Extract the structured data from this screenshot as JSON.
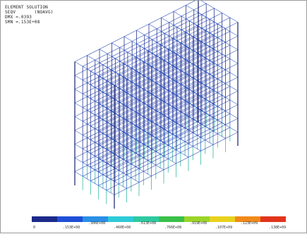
{
  "header": {
    "lines": [
      "ELEMENT SOLUTION",
      "SEQV       (NOAVG)",
      "DMX =.0393",
      "SMN =.153E+08"
    ]
  },
  "legend": {
    "colors": [
      "#1b2a8a",
      "#1f4fd6",
      "#2b8fe6",
      "#2ecad8",
      "#2ec9a0",
      "#3ac04a",
      "#9bd42a",
      "#e8d21e",
      "#f08a1a",
      "#e2341c"
    ],
    "labels": [
      "0",
      ".153E+08",
      ".306E+08",
      ".460E+08",
      ".613E+08",
      ".766E+08",
      ".919E+08",
      ".107E+09",
      ".123E+09",
      ".138E+09"
    ]
  }
}
